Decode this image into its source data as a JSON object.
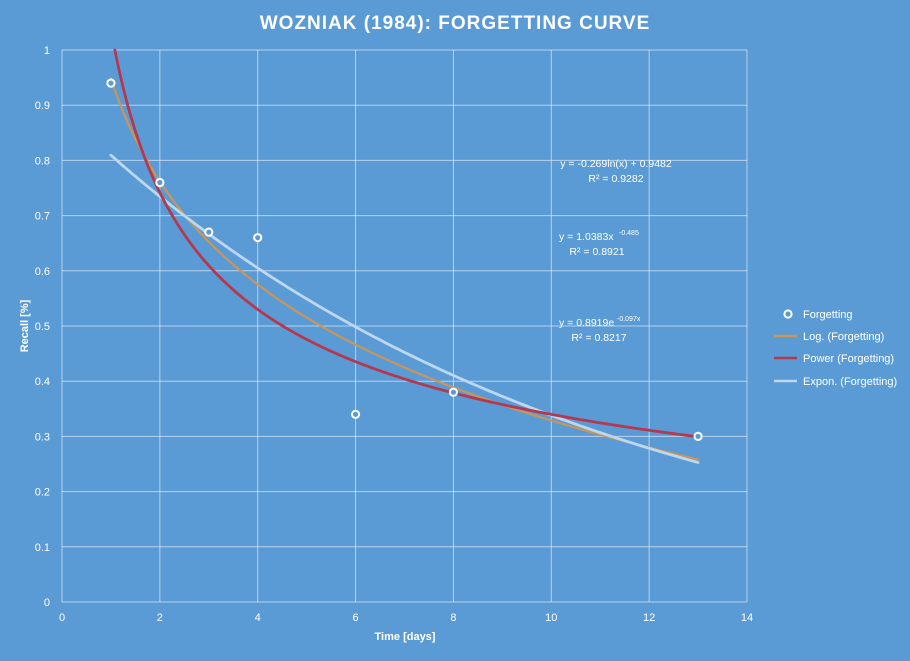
{
  "chart_data": {
    "type": "scatter",
    "title": "WOZNIAK (1984):  FORGETTING  CURVE",
    "xlabel": "Time [days]",
    "ylabel": "Recall [%]",
    "xlim": [
      0,
      14
    ],
    "ylim": [
      0,
      1
    ],
    "x_ticks": [
      "0",
      "2",
      "4",
      "6",
      "8",
      "10",
      "12",
      "14"
    ],
    "y_ticks": [
      "0",
      "0.1",
      "0.2",
      "0.3",
      "0.4",
      "0.5",
      "0.6",
      "0.7",
      "0.8",
      "0.9",
      "1"
    ],
    "grid": true,
    "legend_position": "right",
    "series": [
      {
        "name": "Forgetting",
        "kind": "points",
        "x": [
          1,
          2,
          3,
          4,
          6,
          8,
          13
        ],
        "y": [
          0.94,
          0.76,
          0.67,
          0.66,
          0.34,
          0.38,
          0.3
        ]
      }
    ],
    "trendlines": [
      {
        "name": "Log. (Forgetting)",
        "model": "log",
        "a": -0.269,
        "b": 0.9482,
        "color": "#c8965a",
        "equation_main": "y = -0.269ln(x) + 0.9482",
        "equation_sup": "",
        "r2": "R² = 0.9282"
      },
      {
        "name": "Power (Forgetting)",
        "model": "power",
        "a": 1.0383,
        "b": -0.485,
        "color": "#b5394e",
        "equation_main": "y = 1.0383x",
        "equation_sup": "-0.485",
        "r2": "R² = 0.8921"
      },
      {
        "name": "Expon. (Forgetting)",
        "model": "exp",
        "a": 0.8919,
        "b": -0.097,
        "color": "#bdd7ee",
        "equation_main": "y = 0.8919e",
        "equation_sup": "-0.097x",
        "r2": "R² = 0.8217"
      }
    ]
  }
}
